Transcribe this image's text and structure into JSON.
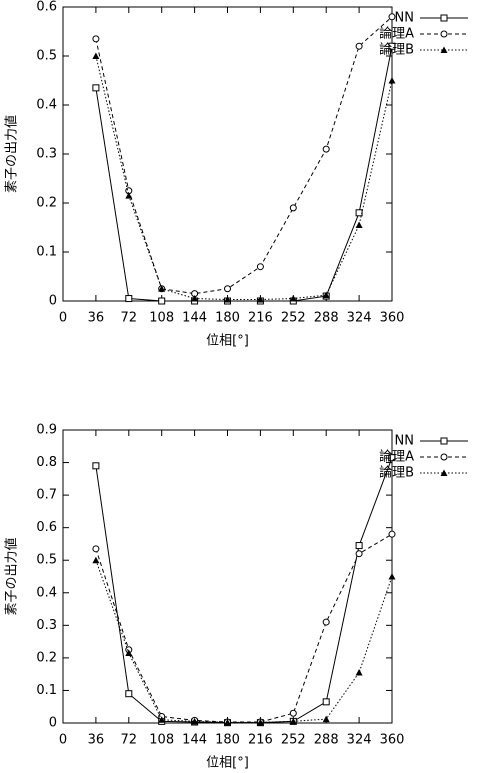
{
  "chart_data": [
    {
      "type": "line",
      "xlabel": "位相[°]",
      "ylabel": "素子の出力値",
      "x": [
        36,
        72,
        108,
        144,
        180,
        216,
        252,
        288,
        324,
        360
      ],
      "xlim": [
        0,
        360
      ],
      "xticks": [
        0,
        36,
        72,
        108,
        144,
        180,
        216,
        252,
        288,
        324,
        360
      ],
      "ylim": [
        0,
        0.6
      ],
      "yticks": [
        0,
        0.1,
        0.2,
        0.3,
        0.4,
        0.5,
        0.6
      ],
      "legend": "upper right",
      "series": [
        {
          "name": "NN",
          "color": "#000000",
          "marker": "square",
          "line_style": "solid",
          "values": [
            0.435,
            0.005,
            0.0,
            0.0,
            0.0,
            0.0,
            0.0,
            0.01,
            0.18,
            0.52
          ]
        },
        {
          "name": "論理A",
          "color": "#000000",
          "marker": "circle",
          "line_style": "dashed",
          "values": [
            0.535,
            0.225,
            0.025,
            0.015,
            0.025,
            0.07,
            0.19,
            0.31,
            0.52,
            0.58
          ]
        },
        {
          "name": "論理B",
          "color": "#000000",
          "marker": "triangle",
          "line_style": "dotted",
          "values": [
            0.5,
            0.215,
            0.025,
            0.005,
            0.003,
            0.003,
            0.005,
            0.012,
            0.155,
            0.45
          ]
        }
      ]
    },
    {
      "type": "line",
      "xlabel": "位相[°]",
      "ylabel": "素子の出力値",
      "x": [
        36,
        72,
        108,
        144,
        180,
        216,
        252,
        288,
        324,
        360
      ],
      "xlim": [
        0,
        360
      ],
      "xticks": [
        0,
        36,
        72,
        108,
        144,
        180,
        216,
        252,
        288,
        324,
        360
      ],
      "ylim": [
        0,
        0.9
      ],
      "yticks": [
        0,
        0.1,
        0.2,
        0.3,
        0.4,
        0.5,
        0.6,
        0.7,
        0.8,
        0.9
      ],
      "legend": "upper right",
      "series": [
        {
          "name": "NN",
          "color": "#000000",
          "marker": "square",
          "line_style": "solid",
          "values": [
            0.79,
            0.09,
            0.005,
            0.003,
            0.001,
            0.001,
            0.005,
            0.065,
            0.545,
            0.815
          ]
        },
        {
          "name": "論理A",
          "color": "#000000",
          "marker": "circle",
          "line_style": "dashed",
          "values": [
            0.535,
            0.225,
            0.02,
            0.008,
            0.003,
            0.003,
            0.03,
            0.31,
            0.52,
            0.58
          ]
        },
        {
          "name": "論理B",
          "color": "#000000",
          "marker": "triangle",
          "line_style": "dotted",
          "values": [
            0.5,
            0.215,
            0.01,
            0.005,
            0.002,
            0.002,
            0.005,
            0.012,
            0.155,
            0.45
          ]
        }
      ]
    }
  ]
}
